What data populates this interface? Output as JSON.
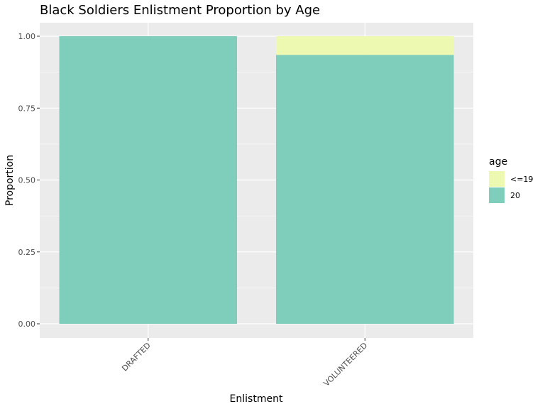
{
  "chart_data": {
    "type": "bar",
    "stacked": true,
    "title": "Black Soldiers Enlistment Proportion by Age",
    "xlabel": "Enlistment",
    "ylabel": "Proportion",
    "categories": [
      "DRAFTED",
      "VOLUNTEERED"
    ],
    "series": [
      {
        "name": "20",
        "values": [
          1.0,
          0.935
        ],
        "color": "#7fcdbb"
      },
      {
        "name": "<=19",
        "values": [
          0.0,
          0.065
        ],
        "color": "#edf8b1"
      }
    ],
    "ylim": [
      0,
      1
    ],
    "yticks": [
      "0.00",
      "0.25",
      "0.50",
      "0.75",
      "1.00"
    ],
    "grid": true,
    "legend": {
      "title": "age",
      "placement": "right",
      "entries": [
        {
          "label": "<=19",
          "color": "#edf8b1"
        },
        {
          "label": "20",
          "color": "#7fcdbb"
        }
      ]
    },
    "panel_background": "#ebebeb",
    "gridline_color": "#ffffff"
  }
}
